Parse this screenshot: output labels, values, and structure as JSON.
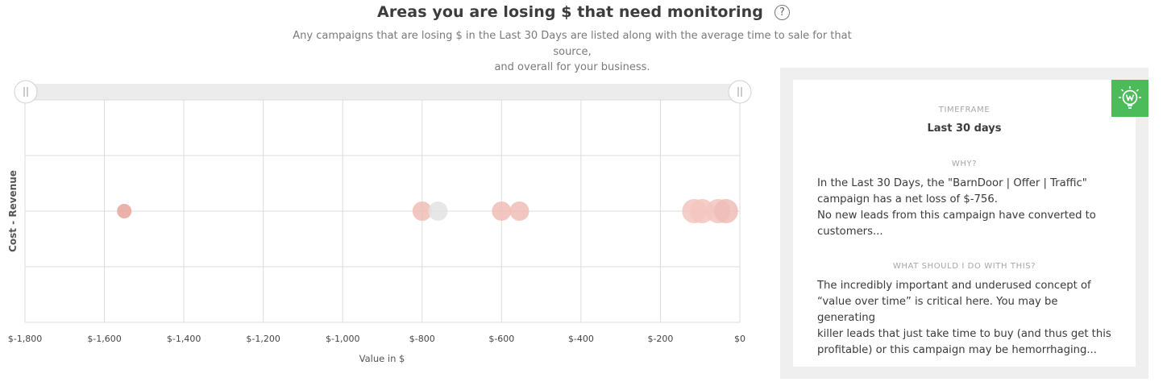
{
  "header": {
    "title": "Areas you are losing $ that need monitoring",
    "help_icon_glyph": "?",
    "subtitle_line1": "Any campaigns that are losing $ in the Last 30 Days are listed along with the average time to sale for that source,",
    "subtitle_line2": "and overall for your business."
  },
  "chart_data": {
    "type": "scatter",
    "title": "",
    "xlabel": "Value in $",
    "ylabel": "Cost - Revenue",
    "xlim": [
      -1800,
      0
    ],
    "x_ticks": [
      -1800,
      -1600,
      -1400,
      -1200,
      -1000,
      -800,
      -600,
      -400,
      -200,
      0
    ],
    "x_tick_labels": [
      "$-1,800",
      "$-1,600",
      "$-1,400",
      "$-1,200",
      "$-1,000",
      "$-800",
      "$-600",
      "$-400",
      "$-200",
      "$0"
    ],
    "y_gridlines": 4,
    "grid": true,
    "range_slider": {
      "min": -1800,
      "max": 0
    },
    "points": [
      {
        "x": -1550,
        "size": "small",
        "color": "#e8a59e"
      },
      {
        "x": -800,
        "size": "medium",
        "color": "#f0bcb6"
      },
      {
        "x": -760,
        "size": "medium",
        "color": "#e3e3e3"
      },
      {
        "x": -600,
        "size": "medium",
        "color": "#f0bcb6"
      },
      {
        "x": -555,
        "size": "medium",
        "color": "#f0bcb6"
      },
      {
        "x": -115,
        "size": "large",
        "color": "#f3c5bf"
      },
      {
        "x": -95,
        "size": "large",
        "color": "#f3c5bf"
      },
      {
        "x": -55,
        "size": "large",
        "color": "#f3c5bf"
      },
      {
        "x": -35,
        "size": "large",
        "color": "#f0bcb6"
      }
    ]
  },
  "insight_panel": {
    "badge_icon": "lightbulb-icon",
    "badge_color": "#4cbb5a",
    "timeframe_label": "TIMEFRAME",
    "timeframe_value": "Last 30 days",
    "why_label": "WHY?",
    "why_line1": "In the Last 30 Days, the \"BarnDoor | Offer | Traffic\"",
    "why_line2": "campaign has a net loss of $-756.",
    "why_line3": "No new leads from this campaign have converted to",
    "why_line4": "customers...",
    "what_label": "WHAT SHOULD I DO WITH THIS?",
    "what_line1": "The incredibly important and underused concept of",
    "what_line2": "“value over time” is critical here. You may be generating",
    "what_line3": "killer leads that just take time to buy (and thus get this",
    "what_line4": "profitable) or this campaign may be hemorrhaging..."
  }
}
